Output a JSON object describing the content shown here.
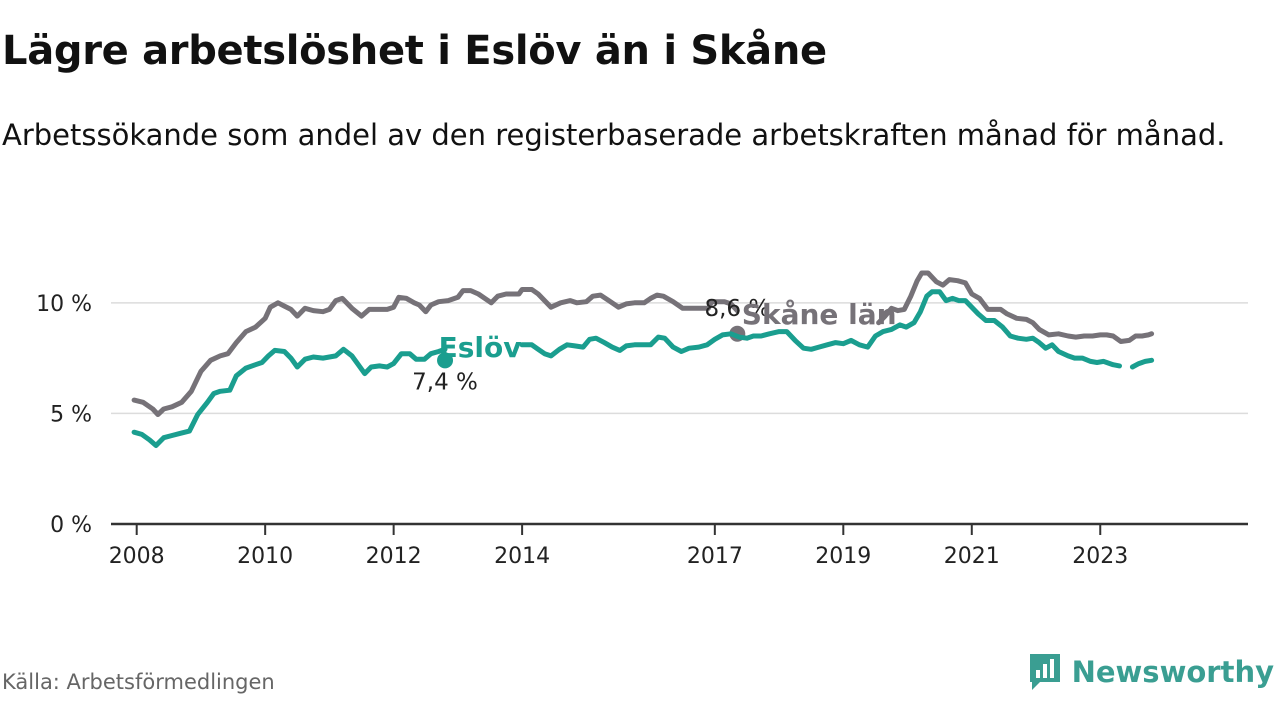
{
  "title": "Lägre arbetslöshet i Eslöv än i Skåne",
  "subtitle": "Arbetssökande som andel av den registerbaserade arbetskraften månad för månad.",
  "source": "Källa: Arbetsförmedlingen",
  "brand": {
    "name": "Newsworthy",
    "icon": "bar-chart-icon"
  },
  "colors": {
    "eslov": "#1a9e8f",
    "skane": "#767278",
    "grid": "#dcdcdc",
    "axis": "#333333",
    "brand": "#3a9e92"
  },
  "chart_data": {
    "type": "line",
    "title": "Lägre arbetslöshet i Eslöv än i Skåne",
    "ylabel": "",
    "xlabel": "",
    "ylim": [
      0,
      11.8
    ],
    "xlim": [
      2007.6,
      2025.3
    ],
    "y_ticks": [
      {
        "value": 0,
        "label": "0 %"
      },
      {
        "value": 5,
        "label": "5 %"
      },
      {
        "value": 10,
        "label": "10 %"
      }
    ],
    "x_ticks": [
      {
        "value": 2008,
        "label": "2008"
      },
      {
        "value": 2010,
        "label": "2010"
      },
      {
        "value": 2012,
        "label": "2012"
      },
      {
        "value": 2014,
        "label": "2014"
      },
      {
        "value": 2017,
        "label": "2017"
      },
      {
        "value": 2019,
        "label": "2019"
      },
      {
        "value": 2021,
        "label": "2021"
      },
      {
        "value": 2023,
        "label": "2023"
      }
    ],
    "series": [
      {
        "name": "Skåne län",
        "key": "skane",
        "end_label": "8,6 %",
        "end_value": 8.6,
        "points": [
          [
            2007.96,
            5.6
          ],
          [
            2008.1,
            5.5
          ],
          [
            2008.25,
            5.2
          ],
          [
            2008.33,
            4.95
          ],
          [
            2008.42,
            5.2
          ],
          [
            2008.55,
            5.3
          ],
          [
            2008.7,
            5.5
          ],
          [
            2008.85,
            6.0
          ],
          [
            2009.0,
            6.9
          ],
          [
            2009.15,
            7.4
          ],
          [
            2009.3,
            7.6
          ],
          [
            2009.42,
            7.7
          ],
          [
            2009.55,
            8.2
          ],
          [
            2009.7,
            8.7
          ],
          [
            2009.85,
            8.9
          ],
          [
            2010.0,
            9.3
          ],
          [
            2010.08,
            9.8
          ],
          [
            2010.2,
            10.0
          ],
          [
            2010.3,
            9.85
          ],
          [
            2010.4,
            9.7
          ],
          [
            2010.5,
            9.4
          ],
          [
            2010.62,
            9.75
          ],
          [
            2010.75,
            9.65
          ],
          [
            2010.9,
            9.6
          ],
          [
            2011.0,
            9.7
          ],
          [
            2011.1,
            10.1
          ],
          [
            2011.2,
            10.2
          ],
          [
            2011.35,
            9.75
          ],
          [
            2011.5,
            9.4
          ],
          [
            2011.62,
            9.7
          ],
          [
            2011.75,
            9.7
          ],
          [
            2011.9,
            9.7
          ],
          [
            2012.0,
            9.8
          ],
          [
            2012.08,
            10.25
          ],
          [
            2012.2,
            10.2
          ],
          [
            2012.32,
            10.0
          ],
          [
            2012.4,
            9.9
          ],
          [
            2012.5,
            9.6
          ],
          [
            2012.58,
            9.9
          ],
          [
            2012.7,
            10.05
          ],
          [
            2012.85,
            10.1
          ],
          [
            2013.0,
            10.25
          ],
          [
            2013.08,
            10.55
          ],
          [
            2013.2,
            10.55
          ],
          [
            2013.32,
            10.4
          ],
          [
            2013.42,
            10.2
          ],
          [
            2013.52,
            10.0
          ],
          [
            2013.62,
            10.3
          ],
          [
            2013.75,
            10.4
          ],
          [
            2013.9,
            10.4
          ],
          [
            2013.95,
            10.4
          ],
          [
            2014.0,
            10.6
          ],
          [
            2014.15,
            10.6
          ],
          [
            2014.25,
            10.4
          ],
          [
            2014.35,
            10.1
          ],
          [
            2014.45,
            9.8
          ],
          [
            2014.6,
            10.0
          ],
          [
            2014.75,
            10.1
          ],
          [
            2014.85,
            10.0
          ],
          [
            2015.0,
            10.05
          ],
          [
            2015.1,
            10.3
          ],
          [
            2015.22,
            10.35
          ],
          [
            2015.35,
            10.1
          ],
          [
            2015.5,
            9.8
          ],
          [
            2015.62,
            9.95
          ],
          [
            2015.75,
            10.0
          ],
          [
            2015.9,
            10.0
          ],
          [
            2016.0,
            10.2
          ],
          [
            2016.1,
            10.35
          ],
          [
            2016.2,
            10.3
          ],
          [
            2016.35,
            10.05
          ],
          [
            2016.5,
            9.75
          ],
          [
            2016.62,
            9.75
          ],
          [
            2016.75,
            9.75
          ],
          [
            2016.9,
            9.75
          ],
          [
            2016.95,
            10.05
          ],
          [
            2017.0,
            10.05
          ],
          [
            2017.15,
            10.05
          ],
          [
            2017.25,
            9.95
          ],
          [
            2017.35,
            9.65
          ]
        ]
      },
      {
        "name": "Skåne län",
        "key": "skane",
        "points": [
          [
            2019.55,
            9.1
          ],
          [
            2019.65,
            9.4
          ],
          [
            2019.75,
            9.75
          ],
          [
            2019.85,
            9.65
          ],
          [
            2019.95,
            9.7
          ],
          [
            2020.05,
            10.3
          ],
          [
            2020.15,
            11.0
          ],
          [
            2020.22,
            11.35
          ],
          [
            2020.32,
            11.35
          ],
          [
            2020.45,
            10.95
          ],
          [
            2020.55,
            10.8
          ],
          [
            2020.65,
            11.05
          ],
          [
            2020.78,
            11.0
          ],
          [
            2020.9,
            10.9
          ],
          [
            2021.0,
            10.4
          ],
          [
            2021.12,
            10.2
          ],
          [
            2021.25,
            9.7
          ],
          [
            2021.35,
            9.7
          ],
          [
            2021.45,
            9.7
          ],
          [
            2021.55,
            9.5
          ],
          [
            2021.7,
            9.3
          ],
          [
            2021.85,
            9.25
          ],
          [
            2021.95,
            9.1
          ],
          [
            2022.05,
            8.8
          ],
          [
            2022.2,
            8.55
          ],
          [
            2022.35,
            8.6
          ],
          [
            2022.5,
            8.5
          ],
          [
            2022.62,
            8.45
          ],
          [
            2022.75,
            8.5
          ],
          [
            2022.88,
            8.5
          ],
          [
            2023.0,
            8.55
          ],
          [
            2023.1,
            8.55
          ],
          [
            2023.2,
            8.5
          ],
          [
            2023.32,
            8.25
          ],
          [
            2023.45,
            8.3
          ],
          [
            2023.55,
            8.5
          ],
          [
            2023.65,
            8.5
          ],
          [
            2023.75,
            8.55
          ],
          [
            2023.8,
            8.6
          ]
        ]
      },
      {
        "name": "Eslöv",
        "key": "eslov",
        "end_label": "7,4 %",
        "end_value": 7.4,
        "points": [
          [
            2007.96,
            4.15
          ],
          [
            2008.08,
            4.05
          ],
          [
            2008.2,
            3.8
          ],
          [
            2008.3,
            3.55
          ],
          [
            2008.42,
            3.9
          ],
          [
            2008.55,
            4.0
          ],
          [
            2008.68,
            4.1
          ],
          [
            2008.82,
            4.2
          ],
          [
            2008.95,
            4.95
          ],
          [
            2009.1,
            5.5
          ],
          [
            2009.2,
            5.9
          ],
          [
            2009.3,
            6.0
          ],
          [
            2009.45,
            6.05
          ],
          [
            2009.55,
            6.7
          ],
          [
            2009.7,
            7.05
          ],
          [
            2009.85,
            7.2
          ],
          [
            2009.95,
            7.3
          ],
          [
            2010.05,
            7.6
          ],
          [
            2010.15,
            7.85
          ],
          [
            2010.3,
            7.8
          ],
          [
            2010.4,
            7.5
          ],
          [
            2010.5,
            7.1
          ],
          [
            2010.62,
            7.45
          ],
          [
            2010.75,
            7.55
          ],
          [
            2010.9,
            7.5
          ],
          [
            2011.0,
            7.55
          ],
          [
            2011.1,
            7.6
          ],
          [
            2011.22,
            7.9
          ],
          [
            2011.35,
            7.6
          ],
          [
            2011.45,
            7.2
          ],
          [
            2011.55,
            6.8
          ],
          [
            2011.65,
            7.1
          ],
          [
            2011.78,
            7.15
          ],
          [
            2011.9,
            7.1
          ],
          [
            2012.0,
            7.25
          ],
          [
            2012.12,
            7.7
          ],
          [
            2012.25,
            7.7
          ],
          [
            2012.35,
            7.45
          ],
          [
            2012.48,
            7.45
          ],
          [
            2012.58,
            7.7
          ],
          [
            2012.7,
            7.8
          ],
          [
            2012.8,
            7.9
          ]
        ]
      },
      {
        "name": "Eslöv",
        "key": "eslov",
        "points": [
          [
            2014.0,
            8.1
          ],
          [
            2014.15,
            8.1
          ],
          [
            2014.25,
            7.9
          ],
          [
            2014.35,
            7.7
          ],
          [
            2014.45,
            7.6
          ],
          [
            2014.58,
            7.9
          ],
          [
            2014.7,
            8.1
          ],
          [
            2014.82,
            8.05
          ],
          [
            2014.95,
            8.0
          ],
          [
            2015.05,
            8.35
          ],
          [
            2015.15,
            8.4
          ],
          [
            2015.28,
            8.2
          ],
          [
            2015.4,
            8.0
          ],
          [
            2015.52,
            7.85
          ],
          [
            2015.62,
            8.05
          ],
          [
            2015.75,
            8.1
          ],
          [
            2015.9,
            8.1
          ],
          [
            2016.0,
            8.1
          ],
          [
            2016.12,
            8.45
          ],
          [
            2016.22,
            8.4
          ],
          [
            2016.35,
            8.0
          ],
          [
            2016.48,
            7.8
          ],
          [
            2016.6,
            7.95
          ],
          [
            2016.75,
            8.0
          ],
          [
            2016.88,
            8.1
          ],
          [
            2017.0,
            8.35
          ],
          [
            2017.12,
            8.55
          ],
          [
            2017.25,
            8.6
          ],
          [
            2017.38,
            8.45
          ],
          [
            2017.5,
            8.4
          ],
          [
            2017.6,
            8.5
          ],
          [
            2017.72,
            8.5
          ],
          [
            2017.85,
            8.6
          ],
          [
            2018.0,
            8.7
          ],
          [
            2018.12,
            8.7
          ],
          [
            2018.25,
            8.3
          ],
          [
            2018.38,
            7.95
          ],
          [
            2018.5,
            7.9
          ],
          [
            2018.62,
            8.0
          ],
          [
            2018.75,
            8.1
          ],
          [
            2018.88,
            8.2
          ],
          [
            2019.0,
            8.15
          ],
          [
            2019.12,
            8.3
          ],
          [
            2019.25,
            8.1
          ],
          [
            2019.38,
            8.0
          ],
          [
            2019.5,
            8.5
          ],
          [
            2019.62,
            8.7
          ],
          [
            2019.75,
            8.8
          ],
          [
            2019.88,
            9.0
          ],
          [
            2019.98,
            8.9
          ],
          [
            2020.1,
            9.1
          ],
          [
            2020.2,
            9.6
          ],
          [
            2020.3,
            10.3
          ],
          [
            2020.38,
            10.5
          ],
          [
            2020.5,
            10.5
          ],
          [
            2020.6,
            10.1
          ],
          [
            2020.7,
            10.2
          ],
          [
            2020.8,
            10.1
          ],
          [
            2020.9,
            10.1
          ],
          [
            2021.0,
            9.8
          ],
          [
            2021.1,
            9.5
          ],
          [
            2021.22,
            9.2
          ],
          [
            2021.35,
            9.2
          ],
          [
            2021.48,
            8.9
          ],
          [
            2021.6,
            8.5
          ],
          [
            2021.72,
            8.4
          ],
          [
            2021.85,
            8.35
          ],
          [
            2021.95,
            8.4
          ],
          [
            2022.05,
            8.2
          ],
          [
            2022.15,
            7.95
          ],
          [
            2022.25,
            8.1
          ],
          [
            2022.35,
            7.8
          ],
          [
            2022.5,
            7.6
          ],
          [
            2022.6,
            7.5
          ],
          [
            2022.72,
            7.5
          ],
          [
            2022.85,
            7.35
          ],
          [
            2022.95,
            7.3
          ],
          [
            2023.05,
            7.35
          ],
          [
            2023.2,
            7.2
          ],
          [
            2023.3,
            7.15
          ]
        ]
      },
      {
        "name": "Eslöv",
        "key": "eslov",
        "points": [
          [
            2023.5,
            7.1
          ],
          [
            2023.6,
            7.25
          ],
          [
            2023.7,
            7.35
          ],
          [
            2023.8,
            7.4
          ]
        ]
      }
    ],
    "labels": [
      {
        "series": "Skåne län",
        "text": "Skåne län",
        "x": 2017.42,
        "y": 9.5,
        "key": "skane"
      },
      {
        "series": "Eslöv",
        "text": "Eslöv",
        "x": 2012.7,
        "y": 8.0,
        "key": "eslov"
      }
    ]
  }
}
